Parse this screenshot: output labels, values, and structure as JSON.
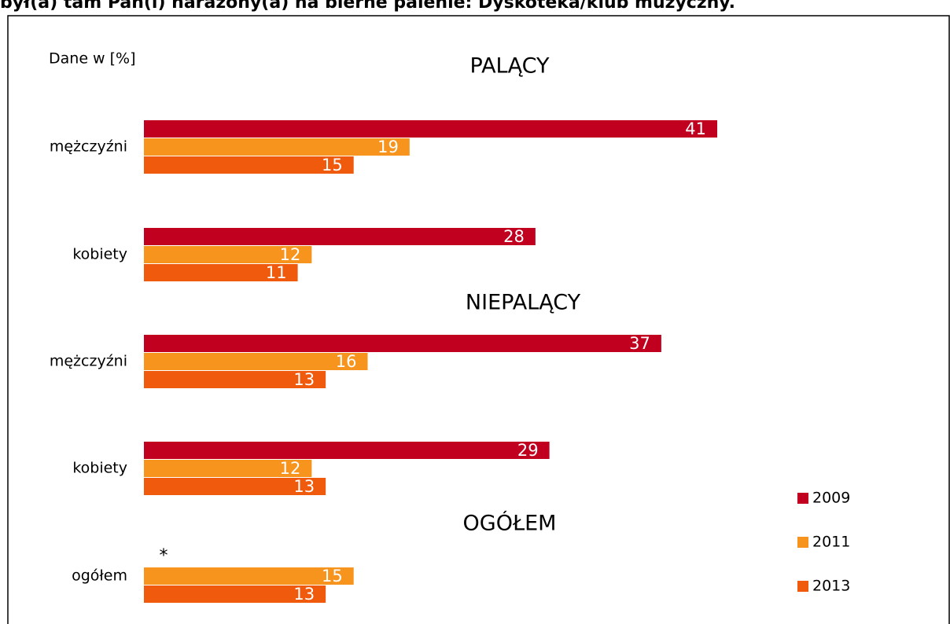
{
  "chart_data": {
    "type": "bar",
    "orientation": "horizontal",
    "title": "był(a) tam Pan(i) narażony(a) na bierne palenie: Dyskoteka/klub muzyczny.",
    "subtitle": "Dane w [%]",
    "sections": [
      "PALĄCY",
      "NIEPALĄCY",
      "OGÓŁEM"
    ],
    "note": "*",
    "categories": [
      "mężczyźni",
      "kobiety",
      "mężczyźni",
      "kobiety",
      "ogółem"
    ],
    "series": [
      {
        "name": "2009",
        "color": "#c1001f",
        "values": [
          41,
          28,
          37,
          29,
          null
        ]
      },
      {
        "name": "2011",
        "color": "#f7941d",
        "values": [
          19,
          12,
          16,
          12,
          15
        ]
      },
      {
        "name": "2013",
        "color": "#ef5a0c",
        "values": [
          15,
          11,
          13,
          13,
          13
        ]
      }
    ],
    "legend": "right"
  }
}
